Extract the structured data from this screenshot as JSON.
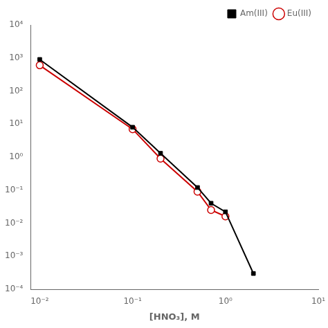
{
  "chart_data": {
    "type": "line",
    "x_label": "[HNO₃], M",
    "log": true,
    "grid": false,
    "legend": "upper right",
    "xlim": [
      0.008,
      10
    ],
    "xticks": [
      {
        "value": 0.01,
        "label": "10⁻²"
      },
      {
        "value": 0.1,
        "label": "10⁻¹"
      },
      {
        "value": 1,
        "label": "10⁰"
      },
      {
        "value": 10,
        "label": "10¹"
      }
    ],
    "ylim": [
      0.0001,
      10000
    ],
    "yticks": [
      {
        "value": 0.0001,
        "label": "10⁻⁴"
      },
      {
        "value": 0.001,
        "label": "10⁻³"
      },
      {
        "value": 0.01,
        "label": "10⁻²"
      },
      {
        "value": 0.1,
        "label": "10⁻¹"
      },
      {
        "value": 1,
        "label": "10⁰"
      },
      {
        "value": 10,
        "label": "10¹"
      },
      {
        "value": 100,
        "label": "10²"
      },
      {
        "value": 1000,
        "label": "10³"
      },
      {
        "value": 10000,
        "label": "10⁴"
      }
    ],
    "series": [
      {
        "name": "Am(III)",
        "color": "#000000",
        "marker": "square",
        "x": [
          0.01,
          0.1,
          0.2,
          0.5,
          0.7,
          1.0,
          2.0
        ],
        "values": [
          900,
          8,
          1.3,
          0.12,
          0.04,
          0.022,
          0.0003
        ]
      },
      {
        "name": "Eu(III)",
        "color": "#cc0000",
        "marker": "circle",
        "x": [
          0.01,
          0.1,
          0.2,
          0.5,
          0.7,
          1.0
        ],
        "values": [
          600,
          7,
          0.9,
          0.09,
          0.025,
          0.016
        ]
      }
    ]
  }
}
